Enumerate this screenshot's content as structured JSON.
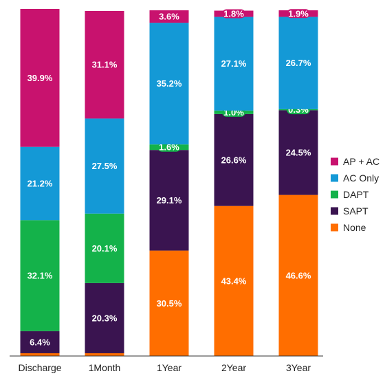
{
  "chart_data": {
    "type": "bar",
    "stacked": true,
    "categories": [
      "Discharge",
      "1Month",
      "1Year",
      "2Year",
      "3Year"
    ],
    "ylim": [
      0,
      100
    ],
    "grid": false,
    "legend_position": "right",
    "series": [
      {
        "name": "None",
        "color": "#FF6E00",
        "values": [
          0.8,
          0.8,
          30.5,
          43.4,
          46.6
        ],
        "labels": [
          "",
          "",
          "30.5%",
          "43.4%",
          "46.6%"
        ]
      },
      {
        "name": "SAPT",
        "color": "#3A1450",
        "values": [
          6.4,
          20.3,
          29.1,
          26.6,
          24.5
        ],
        "labels": [
          "6.4%",
          "20.3%",
          "29.1%",
          "26.6%",
          "24.5%"
        ]
      },
      {
        "name": "DAPT",
        "color": "#14B24A",
        "values": [
          32.1,
          20.1,
          1.6,
          1.0,
          0.3
        ],
        "labels": [
          "32.1%",
          "20.1%",
          "1.6%",
          "1.0%",
          "0.3%"
        ]
      },
      {
        "name": "AC Only",
        "color": "#1499D6",
        "values": [
          21.2,
          27.5,
          35.2,
          27.1,
          26.7
        ],
        "labels": [
          "21.2%",
          "27.5%",
          "35.2%",
          "27.1%",
          "26.7%"
        ]
      },
      {
        "name": "AP + AC",
        "color": "#C8126E",
        "values": [
          39.9,
          31.1,
          3.6,
          1.8,
          1.9
        ],
        "labels": [
          "39.9%",
          "31.1%",
          "3.6%",
          "1.8%",
          "1.9%"
        ]
      }
    ],
    "legend_order": [
      "AP + AC",
      "AC Only",
      "DAPT",
      "SAPT",
      "None"
    ]
  }
}
